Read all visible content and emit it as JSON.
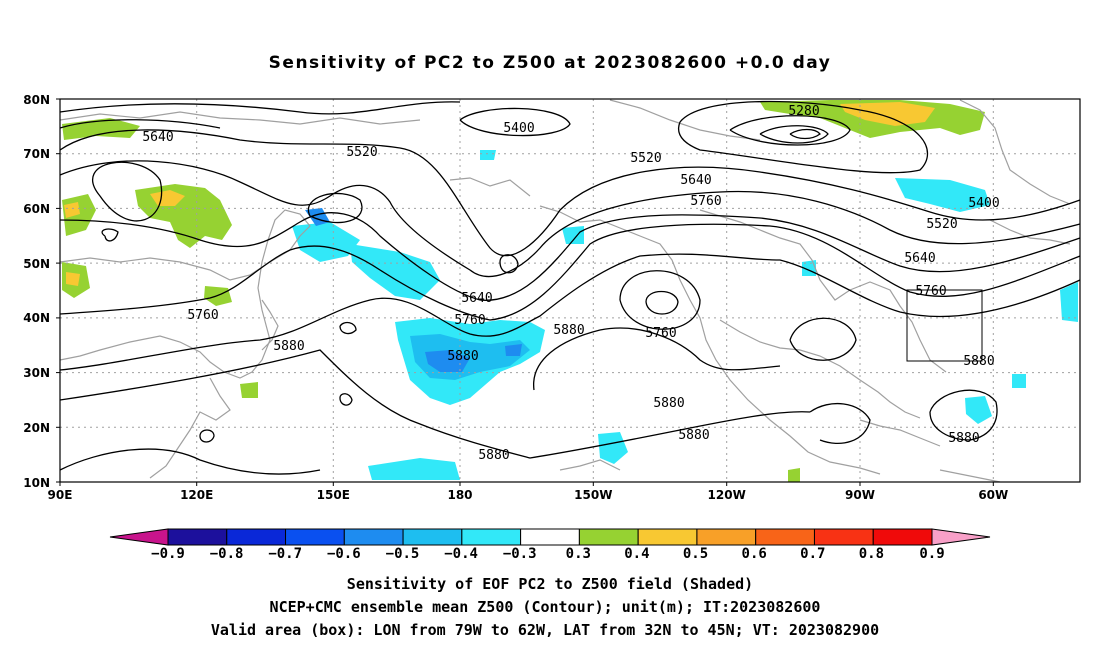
{
  "title": "Sensitivity of PC2 to Z500 at 2023082600 +0.0 day",
  "lat_labels": [
    "80N",
    "70N",
    "60N",
    "50N",
    "40N",
    "30N",
    "20N",
    "10N"
  ],
  "lon_labels": [
    "90E",
    "120E",
    "150E",
    "180",
    "150W",
    "120W",
    "90W",
    "60W"
  ],
  "contour_labels": [
    "5400",
    "5280",
    "5640",
    "5520",
    "5520",
    "5640",
    "5760",
    "5400",
    "5520",
    "5640",
    "5760",
    "5640",
    "5760",
    "5760",
    "5880",
    "5880",
    "5880",
    "5760",
    "5880",
    "5880",
    "5880",
    "5880",
    "5880"
  ],
  "colorbar": {
    "labels": [
      "−0.9",
      "−0.8",
      "−0.7",
      "−0.6",
      "−0.5",
      "−0.4",
      "−0.3",
      "0.3",
      "0.4",
      "0.5",
      "0.6",
      "0.7",
      "0.8",
      "0.9"
    ],
    "colors": [
      "#1c109c",
      "#0a28d8",
      "#0a50f0",
      "#1e8cf0",
      "#1ebef0",
      "#32e8f8",
      "#ffffff",
      "#96d232",
      "#f8c832",
      "#f8a028",
      "#f86418",
      "#f83214",
      "#f00a0a"
    ],
    "under_color": "#c8148c",
    "over_color": "#f8a0c8"
  },
  "footer": [
    "Sensitivity of EOF PC2 to Z500 field (Shaded)",
    "NCEP+CMC ensemble mean Z500 (Contour); unit(m); IT:2023082600",
    "Valid area (box): LON from 79W to 62W, LAT from 32N to 45N; VT: 2023082900"
  ],
  "colors": {
    "contour": "#000000",
    "coast": "#a0a0a0",
    "grid": "#a0a0a0"
  }
}
